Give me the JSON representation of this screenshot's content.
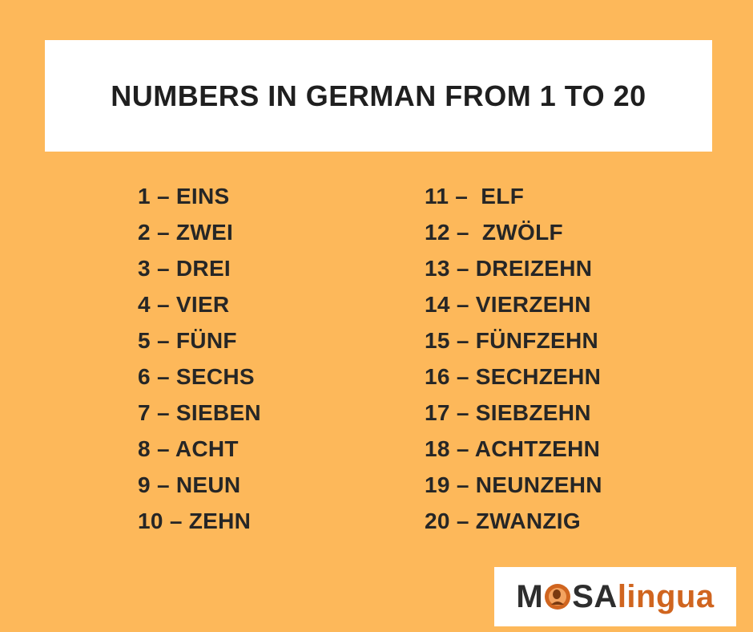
{
  "title": "NUMBERS IN GERMAN FROM 1 TO 20",
  "left_column": [
    "1 – EINS",
    "2 – ZWEI",
    "3 – DREI",
    "4 – VIER",
    "5 – FÜNF",
    "6 – SECHS",
    "7 – SIEBEN",
    "8 – ACHT",
    "9 – NEUN",
    "10 – ZEHN"
  ],
  "right_column": [
    "11 –  ELF",
    "12 –  ZWÖLF",
    "13 – DREIZEHN",
    "14 – VIERZEHN",
    "15 – FÜNFZEHN",
    "16 – SECHZEHN",
    "17 – SIEBZEHN",
    "18 – ACHTZEHN",
    "19 – NEUNZEHN",
    "20 – ZWANZIG"
  ],
  "logo": {
    "text": "MOSAlingua",
    "part_mo": "M",
    "part_sa": "SA",
    "part_lingua": "lingua"
  },
  "colors": {
    "background": "#FDB85A",
    "title_box": "#FFFFFF",
    "text": "#262626",
    "logo_accent": "#D0651F"
  }
}
